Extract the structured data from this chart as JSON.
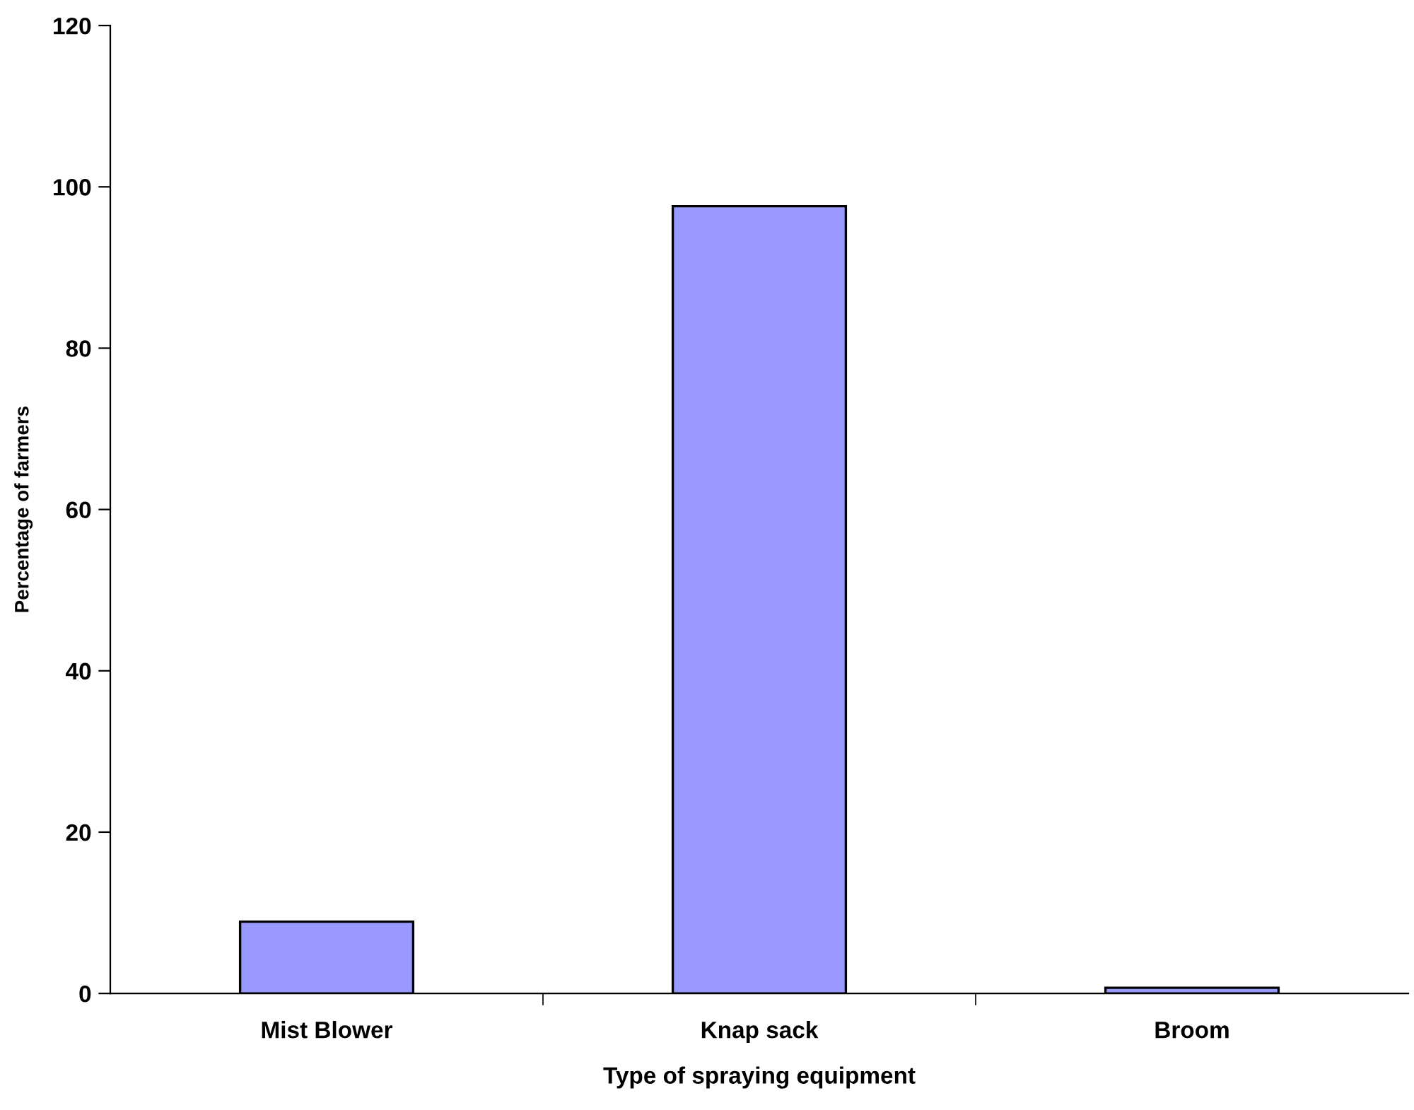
{
  "chart_data": {
    "type": "bar",
    "xlabel": "Type of spraying equipment",
    "ylabel": "Percentage of farmers",
    "categories": [
      "Mist Blower",
      "Knap sack",
      "Broom"
    ],
    "values": [
      8.9,
      97.6,
      0.7
    ],
    "color": "#9999ff",
    "ylim": [
      0,
      120
    ],
    "yticks": [
      0,
      20,
      40,
      60,
      80,
      100,
      120
    ],
    "grid": false,
    "legend": false
  }
}
